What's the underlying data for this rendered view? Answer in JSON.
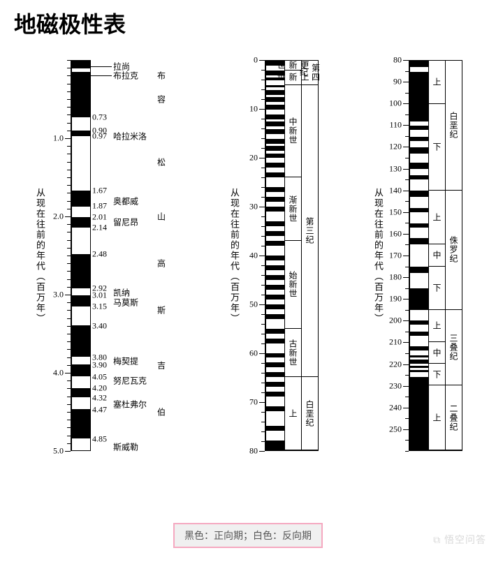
{
  "title": "地磁极性表",
  "legend_text": "黑色：正向期；白色：反向期",
  "watermark": "⧉ 悟空问答",
  "ylabel": "从现在往前的年代（百万年）",
  "colors": {
    "normal": "#000000",
    "reversed": "#ffffff",
    "border": "#000000",
    "legend_border": "#f5a8c0",
    "legend_bg": "#f0f0f0",
    "legend_text": "#555555"
  },
  "chart1": {
    "range": [
      0,
      5.0
    ],
    "major_ticks": [
      1.0,
      2.0,
      3.0,
      4.0,
      5.0
    ],
    "minor_step": 0.1,
    "bands": [
      {
        "from": 0,
        "to": 0.1,
        "c": "n"
      },
      {
        "from": 0.1,
        "to": 0.14,
        "c": "r"
      },
      {
        "from": 0.14,
        "to": 0.19,
        "c": "n"
      },
      {
        "from": 0.19,
        "to": 0.73,
        "c": "n"
      },
      {
        "from": 0.73,
        "to": 0.9,
        "c": "r"
      },
      {
        "from": 0.9,
        "to": 0.97,
        "c": "n"
      },
      {
        "from": 0.97,
        "to": 1.67,
        "c": "r"
      },
      {
        "from": 1.67,
        "to": 1.87,
        "c": "n"
      },
      {
        "from": 1.87,
        "to": 2.01,
        "c": "r"
      },
      {
        "from": 2.01,
        "to": 2.14,
        "c": "n"
      },
      {
        "from": 2.14,
        "to": 2.48,
        "c": "r"
      },
      {
        "from": 2.48,
        "to": 2.92,
        "c": "n"
      },
      {
        "from": 2.92,
        "to": 3.01,
        "c": "r"
      },
      {
        "from": 3.01,
        "to": 3.15,
        "c": "n"
      },
      {
        "from": 3.15,
        "to": 3.4,
        "c": "r"
      },
      {
        "from": 3.4,
        "to": 3.8,
        "c": "n"
      },
      {
        "from": 3.8,
        "to": 3.9,
        "c": "r"
      },
      {
        "from": 3.9,
        "to": 4.05,
        "c": "n"
      },
      {
        "from": 4.05,
        "to": 4.2,
        "c": "r"
      },
      {
        "from": 4.2,
        "to": 4.32,
        "c": "n"
      },
      {
        "from": 4.32,
        "to": 4.47,
        "c": "r"
      },
      {
        "from": 4.47,
        "to": 4.85,
        "c": "n"
      },
      {
        "from": 4.85,
        "to": 5.0,
        "c": "r"
      }
    ],
    "value_labels": [
      {
        "y": 0.73,
        "t": "0.73"
      },
      {
        "y": 0.9,
        "t": "0.90"
      },
      {
        "y": 0.97,
        "t": "0.97"
      },
      {
        "y": 1.67,
        "t": "1.67"
      },
      {
        "y": 1.87,
        "t": "1.87"
      },
      {
        "y": 2.01,
        "t": "2.01"
      },
      {
        "y": 2.14,
        "t": "2.14"
      },
      {
        "y": 2.48,
        "t": "2.48"
      },
      {
        "y": 2.92,
        "t": "2.92"
      },
      {
        "y": 3.01,
        "t": "3.01"
      },
      {
        "y": 3.15,
        "t": "3.15"
      },
      {
        "y": 3.4,
        "t": "3.40"
      },
      {
        "y": 3.8,
        "t": "3.80"
      },
      {
        "y": 3.9,
        "t": "3.90"
      },
      {
        "y": 4.05,
        "t": "4.05"
      },
      {
        "y": 4.2,
        "t": "4.20"
      },
      {
        "y": 4.32,
        "t": "4.32"
      },
      {
        "y": 4.47,
        "t": "4.47"
      },
      {
        "y": 4.85,
        "t": "4.85"
      }
    ],
    "event_labels": [
      {
        "y": 0.08,
        "t": "拉尚",
        "line": true
      },
      {
        "y": 0.2,
        "t": "布拉克",
        "line": true
      },
      {
        "y": 0.97,
        "t": "哈拉米洛"
      },
      {
        "y": 1.8,
        "t": "奥都威"
      },
      {
        "y": 2.07,
        "t": "留尼昂"
      },
      {
        "y": 2.97,
        "t": "凯纳"
      },
      {
        "y": 3.1,
        "t": "马莫斯"
      },
      {
        "y": 3.85,
        "t": "梅契提"
      },
      {
        "y": 4.1,
        "t": "努尼瓦克"
      },
      {
        "y": 4.4,
        "t": "塞杜弗尔"
      },
      {
        "y": 4.95,
        "t": "斯威勒"
      }
    ],
    "chron_labels": [
      {
        "y": 0.2,
        "t": "布"
      },
      {
        "y": 0.5,
        "t": "容"
      },
      {
        "y": 1.3,
        "t": "松"
      },
      {
        "y": 2.0,
        "t": "山"
      },
      {
        "y": 2.6,
        "t": "高"
      },
      {
        "y": 3.2,
        "t": "斯"
      },
      {
        "y": 3.9,
        "t": "吉"
      },
      {
        "y": 4.5,
        "t": "伯"
      }
    ]
  },
  "chart2": {
    "range": [
      0,
      80
    ],
    "major_ticks": [
      0,
      10,
      20,
      30,
      40,
      50,
      60,
      70,
      80
    ],
    "minor_step": 2,
    "bands": [
      {
        "from": 0,
        "to": 1,
        "c": "n"
      },
      {
        "from": 1,
        "to": 2,
        "c": "r"
      },
      {
        "from": 2,
        "to": 3,
        "c": "n"
      },
      {
        "from": 3,
        "to": 3.5,
        "c": "r"
      },
      {
        "from": 3.5,
        "to": 4,
        "c": "n"
      },
      {
        "from": 4,
        "to": 5,
        "c": "r"
      },
      {
        "from": 5,
        "to": 5.5,
        "c": "n"
      },
      {
        "from": 5.5,
        "to": 6,
        "c": "r"
      },
      {
        "from": 6,
        "to": 7,
        "c": "n"
      },
      {
        "from": 7,
        "to": 7.5,
        "c": "r"
      },
      {
        "from": 7.5,
        "to": 8.5,
        "c": "n"
      },
      {
        "from": 8.5,
        "to": 9,
        "c": "r"
      },
      {
        "from": 9,
        "to": 10,
        "c": "n"
      },
      {
        "from": 10,
        "to": 11,
        "c": "r"
      },
      {
        "from": 11,
        "to": 12,
        "c": "n"
      },
      {
        "from": 12,
        "to": 12.5,
        "c": "r"
      },
      {
        "from": 12.5,
        "to": 13.5,
        "c": "n"
      },
      {
        "from": 13.5,
        "to": 14,
        "c": "r"
      },
      {
        "from": 14,
        "to": 15,
        "c": "n"
      },
      {
        "from": 15,
        "to": 16,
        "c": "r"
      },
      {
        "from": 16,
        "to": 17,
        "c": "n"
      },
      {
        "from": 17,
        "to": 17.5,
        "c": "r"
      },
      {
        "from": 17.5,
        "to": 18.5,
        "c": "n"
      },
      {
        "from": 18.5,
        "to": 19,
        "c": "r"
      },
      {
        "from": 19,
        "to": 20,
        "c": "n"
      },
      {
        "from": 20,
        "to": 21,
        "c": "r"
      },
      {
        "from": 21,
        "to": 22,
        "c": "n"
      },
      {
        "from": 22,
        "to": 23,
        "c": "r"
      },
      {
        "from": 23,
        "to": 24,
        "c": "n"
      },
      {
        "from": 24,
        "to": 26,
        "c": "r"
      },
      {
        "from": 26,
        "to": 27,
        "c": "n"
      },
      {
        "from": 27,
        "to": 28,
        "c": "r"
      },
      {
        "from": 28,
        "to": 29,
        "c": "n"
      },
      {
        "from": 29,
        "to": 30,
        "c": "r"
      },
      {
        "from": 30,
        "to": 31,
        "c": "n"
      },
      {
        "from": 31,
        "to": 33,
        "c": "r"
      },
      {
        "from": 33,
        "to": 34,
        "c": "n"
      },
      {
        "from": 34,
        "to": 35,
        "c": "r"
      },
      {
        "from": 35,
        "to": 36,
        "c": "n"
      },
      {
        "from": 36,
        "to": 37,
        "c": "r"
      },
      {
        "from": 37,
        "to": 38,
        "c": "n"
      },
      {
        "from": 38,
        "to": 40,
        "c": "r"
      },
      {
        "from": 40,
        "to": 41,
        "c": "n"
      },
      {
        "from": 41,
        "to": 42,
        "c": "r"
      },
      {
        "from": 42,
        "to": 43,
        "c": "n"
      },
      {
        "from": 43,
        "to": 44,
        "c": "r"
      },
      {
        "from": 44,
        "to": 45,
        "c": "n"
      },
      {
        "from": 45,
        "to": 46,
        "c": "r"
      },
      {
        "from": 46,
        "to": 47,
        "c": "n"
      },
      {
        "from": 47,
        "to": 48,
        "c": "r"
      },
      {
        "from": 48,
        "to": 49,
        "c": "n"
      },
      {
        "from": 49,
        "to": 50,
        "c": "r"
      },
      {
        "from": 50,
        "to": 51,
        "c": "n"
      },
      {
        "from": 51,
        "to": 52,
        "c": "r"
      },
      {
        "from": 52,
        "to": 53,
        "c": "n"
      },
      {
        "from": 53,
        "to": 55,
        "c": "r"
      },
      {
        "from": 55,
        "to": 56,
        "c": "n"
      },
      {
        "from": 56,
        "to": 57,
        "c": "r"
      },
      {
        "from": 57,
        "to": 58,
        "c": "n"
      },
      {
        "from": 58,
        "to": 60,
        "c": "r"
      },
      {
        "from": 60,
        "to": 61,
        "c": "n"
      },
      {
        "from": 61,
        "to": 62,
        "c": "r"
      },
      {
        "from": 62,
        "to": 63,
        "c": "n"
      },
      {
        "from": 63,
        "to": 64,
        "c": "r"
      },
      {
        "from": 64,
        "to": 65,
        "c": "n"
      },
      {
        "from": 65,
        "to": 66,
        "c": "r"
      },
      {
        "from": 66,
        "to": 67,
        "c": "n"
      },
      {
        "from": 67,
        "to": 68,
        "c": "r"
      },
      {
        "from": 68,
        "to": 69,
        "c": "n"
      },
      {
        "from": 69,
        "to": 71,
        "c": "r"
      },
      {
        "from": 71,
        "to": 72,
        "c": "n"
      },
      {
        "from": 72,
        "to": 75,
        "c": "r"
      },
      {
        "from": 75,
        "to": 76,
        "c": "n"
      },
      {
        "from": 76,
        "to": 78,
        "c": "r"
      },
      {
        "from": 78,
        "to": 80,
        "c": "n"
      }
    ],
    "epochs": [
      {
        "from": 0,
        "to": 2,
        "t": "更新世"
      },
      {
        "from": 2,
        "to": 5,
        "t": "上新世"
      },
      {
        "from": 5,
        "to": 24,
        "t": "中新世"
      },
      {
        "from": 24,
        "to": 37,
        "t": "渐新世"
      },
      {
        "from": 37,
        "to": 55,
        "t": "始新世"
      },
      {
        "from": 55,
        "to": 65,
        "t": "古新世"
      },
      {
        "from": 65,
        "to": 80,
        "t": "上"
      }
    ],
    "periods": [
      {
        "from": 0,
        "to": 5,
        "t": "第四纪"
      },
      {
        "from": 5,
        "to": 65,
        "t": "第三纪"
      },
      {
        "from": 65,
        "to": 80,
        "t": "白垩纪"
      }
    ]
  },
  "chart3": {
    "range": [
      80,
      260
    ],
    "major_ticks": [
      80,
      90,
      100,
      110,
      120,
      130,
      140,
      150,
      160,
      170,
      180,
      190,
      200,
      210,
      220,
      230,
      240,
      250
    ],
    "minor_step": 5,
    "bands": [
      {
        "from": 80,
        "to": 83,
        "c": "n"
      },
      {
        "from": 83,
        "to": 85,
        "c": "r"
      },
      {
        "from": 85,
        "to": 108,
        "c": "n"
      },
      {
        "from": 108,
        "to": 110,
        "c": "r"
      },
      {
        "from": 110,
        "to": 112,
        "c": "n"
      },
      {
        "from": 112,
        "to": 115,
        "c": "r"
      },
      {
        "from": 115,
        "to": 117,
        "c": "n"
      },
      {
        "from": 117,
        "to": 120,
        "c": "r"
      },
      {
        "from": 120,
        "to": 123,
        "c": "n"
      },
      {
        "from": 123,
        "to": 127,
        "c": "r"
      },
      {
        "from": 127,
        "to": 130,
        "c": "n"
      },
      {
        "from": 130,
        "to": 133,
        "c": "r"
      },
      {
        "from": 133,
        "to": 135,
        "c": "n"
      },
      {
        "from": 135,
        "to": 140,
        "c": "r"
      },
      {
        "from": 140,
        "to": 143,
        "c": "n"
      },
      {
        "from": 143,
        "to": 148,
        "c": "r"
      },
      {
        "from": 148,
        "to": 150,
        "c": "n"
      },
      {
        "from": 150,
        "to": 155,
        "c": "r"
      },
      {
        "from": 155,
        "to": 157,
        "c": "n"
      },
      {
        "from": 157,
        "to": 162,
        "c": "r"
      },
      {
        "from": 162,
        "to": 165,
        "c": "n"
      },
      {
        "from": 165,
        "to": 175,
        "c": "r"
      },
      {
        "from": 175,
        "to": 178,
        "c": "n"
      },
      {
        "from": 178,
        "to": 185,
        "c": "r"
      },
      {
        "from": 185,
        "to": 195,
        "c": "n"
      },
      {
        "from": 195,
        "to": 200,
        "c": "r"
      },
      {
        "from": 200,
        "to": 202,
        "c": "n"
      },
      {
        "from": 202,
        "to": 205,
        "c": "r"
      },
      {
        "from": 205,
        "to": 207,
        "c": "n"
      },
      {
        "from": 207,
        "to": 212,
        "c": "r"
      },
      {
        "from": 212,
        "to": 214,
        "c": "n"
      },
      {
        "from": 214,
        "to": 216,
        "c": "r"
      },
      {
        "from": 216,
        "to": 217,
        "c": "n"
      },
      {
        "from": 217,
        "to": 218,
        "c": "r"
      },
      {
        "from": 218,
        "to": 220,
        "c": "n"
      },
      {
        "from": 220,
        "to": 221,
        "c": "r"
      },
      {
        "from": 221,
        "to": 222,
        "c": "n"
      },
      {
        "from": 222,
        "to": 223,
        "c": "r"
      },
      {
        "from": 223,
        "to": 224,
        "c": "n"
      },
      {
        "from": 224,
        "to": 226,
        "c": "r"
      },
      {
        "from": 226,
        "to": 260,
        "c": "n"
      }
    ],
    "epochs": [
      {
        "from": 80,
        "to": 100,
        "t": "上"
      },
      {
        "from": 100,
        "to": 140,
        "t": "下"
      },
      {
        "from": 140,
        "to": 165,
        "t": "上"
      },
      {
        "from": 165,
        "to": 175,
        "t": "中"
      },
      {
        "from": 175,
        "to": 195,
        "t": "下"
      },
      {
        "from": 195,
        "to": 210,
        "t": "上"
      },
      {
        "from": 210,
        "to": 220,
        "t": "中"
      },
      {
        "from": 220,
        "to": 230,
        "t": "下"
      },
      {
        "from": 230,
        "to": 260,
        "t": "上"
      }
    ],
    "periods": [
      {
        "from": 80,
        "to": 140,
        "t": "白垩纪"
      },
      {
        "from": 140,
        "to": 195,
        "t": "侏罗纪"
      },
      {
        "from": 195,
        "to": 230,
        "t": "三叠纪"
      },
      {
        "from": 230,
        "to": 260,
        "t": "二叠纪"
      }
    ]
  }
}
